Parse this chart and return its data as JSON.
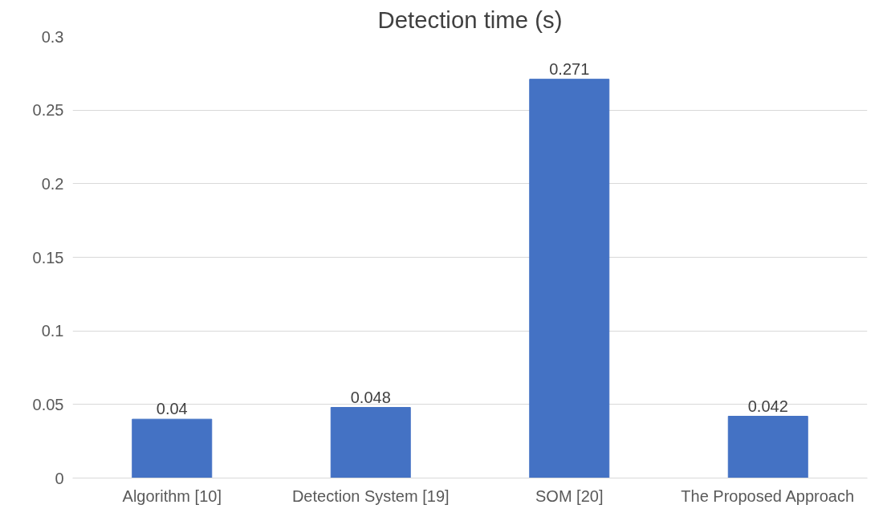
{
  "chart_data": {
    "type": "bar",
    "title": "Detection time (s)",
    "categories": [
      "Algorithm [10]",
      "Detection System [19]",
      "SOM [20]",
      "The Proposed Approach"
    ],
    "values": [
      0.04,
      0.048,
      0.271,
      0.042
    ],
    "color": "#4472c4",
    "ylim": [
      0,
      0.3
    ],
    "yticks": [
      0,
      0.05,
      0.1,
      0.15,
      0.2,
      0.25,
      0.3
    ],
    "grid": "y",
    "data_labels": true
  }
}
